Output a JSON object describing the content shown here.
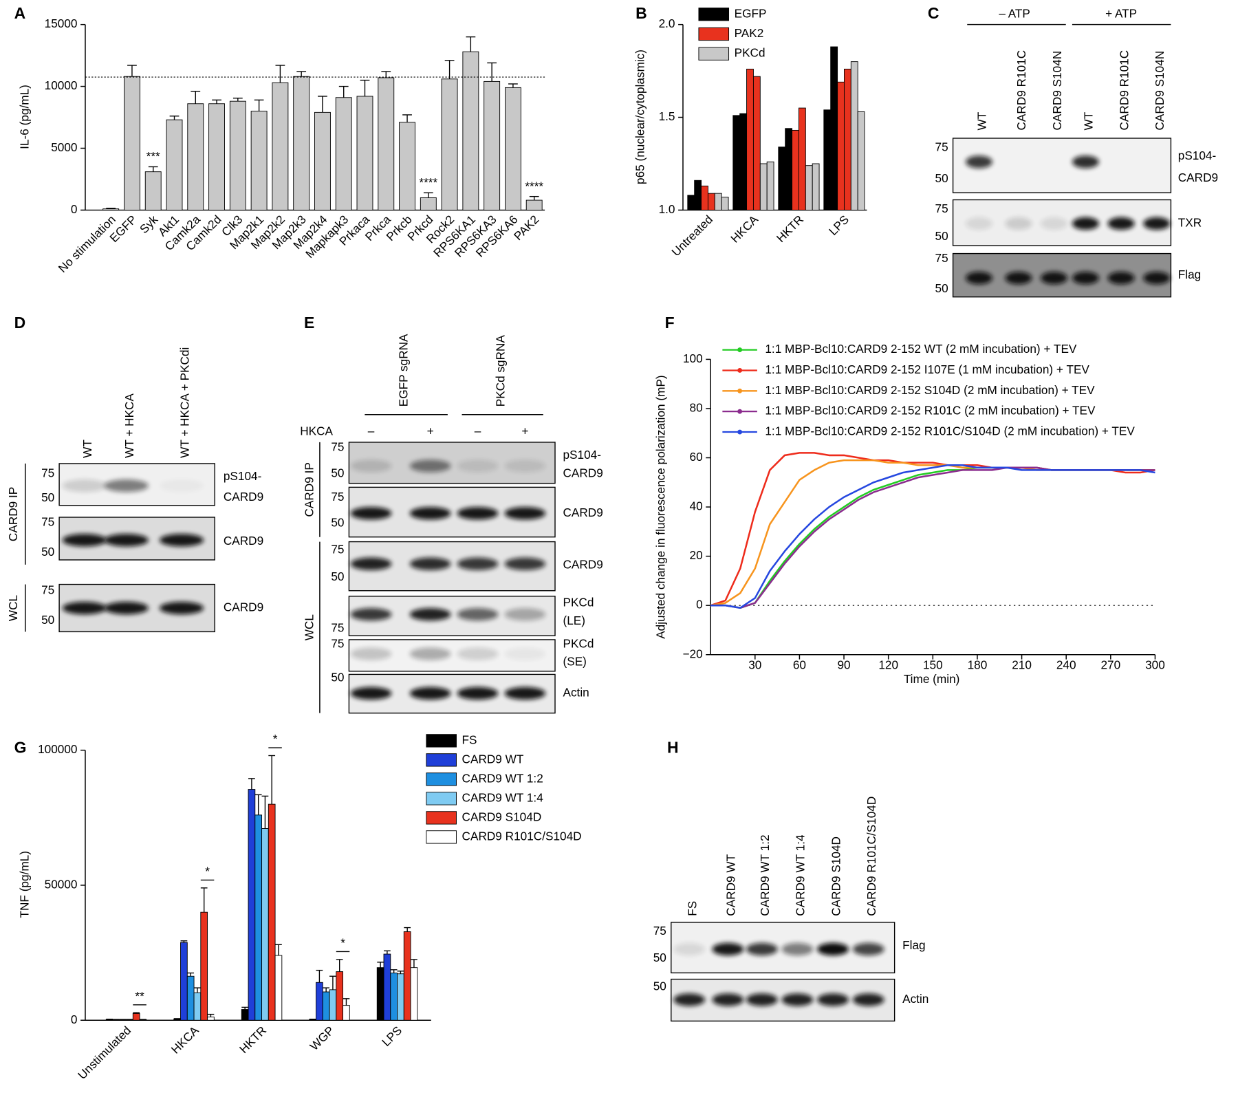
{
  "chart_data": [
    {
      "panel_label": "A",
      "type": "bar",
      "ylabel": "IL-6 (pg/mL)",
      "categories": [
        "No stimulation",
        "EGFP",
        "Syk",
        "Akt1",
        "Camk2a",
        "Camk2d",
        "Clk3",
        "Map2k1",
        "Map2k2",
        "Map2k3",
        "Map2k4",
        "Mapkapk3",
        "Prkaca",
        "Prkca",
        "Prkcb",
        "Prkcd",
        "Rock2",
        "RPS6KA1",
        "RPS6KA3",
        "RPS6KA6",
        "PAK2"
      ],
      "values": [
        100,
        10800,
        3100,
        7300,
        8600,
        8600,
        8800,
        8000,
        10300,
        10800,
        7900,
        9100,
        9200,
        10700,
        7100,
        1000,
        10600,
        12800,
        10400,
        9900,
        800
      ],
      "errors": [
        50,
        900,
        400,
        300,
        1000,
        300,
        250,
        900,
        1400,
        400,
        1300,
        900,
        1300,
        500,
        600,
        400,
        1500,
        1200,
        1500,
        300,
        300
      ],
      "significance": [
        null,
        null,
        "***",
        null,
        null,
        null,
        null,
        null,
        null,
        null,
        null,
        null,
        null,
        null,
        null,
        "****",
        null,
        null,
        null,
        null,
        "****"
      ],
      "reference_line": 10750,
      "color": "#c8c8c8",
      "ylim": [
        0,
        15000
      ],
      "yticks": [
        0,
        5000,
        10000,
        15000
      ]
    },
    {
      "panel_label": "B",
      "type": "bar",
      "ylabel": "p65 (nuclear/cytoplasmic)",
      "categories": [
        "Untreated",
        "HKCA",
        "HKTR",
        "LPS"
      ],
      "series": [
        {
          "name": "EGFP",
          "color": "#000000",
          "values": [
            [
              1.08,
              1.16
            ],
            [
              1.51,
              1.52
            ],
            [
              1.34,
              1.44
            ],
            [
              1.54,
              1.88
            ]
          ]
        },
        {
          "name": "PAK2",
          "color": "#e8321e",
          "values": [
            [
              1.13,
              1.09
            ],
            [
              1.76,
              1.72
            ],
            [
              1.43,
              1.55
            ],
            [
              1.69,
              1.76
            ]
          ]
        },
        {
          "name": "PKCd",
          "color": "#c8c8c8",
          "values": [
            [
              1.09,
              1.07
            ],
            [
              1.25,
              1.26
            ],
            [
              1.24,
              1.25
            ],
            [
              1.8,
              1.53
            ]
          ]
        }
      ],
      "ylim": [
        1,
        2
      ],
      "yticks": [
        {
          "value": 1,
          "label": "1.0"
        },
        {
          "value": 1.5,
          "label": "1.5"
        },
        {
          "value": 2,
          "label": "2.0"
        }
      ]
    },
    {
      "panel_label": "F",
      "type": "line",
      "ylabel": "Adjusted change in fluorescence polarization (mP)",
      "xlabel": "Time (min)",
      "x": [
        0,
        10,
        20,
        30,
        40,
        50,
        60,
        70,
        80,
        90,
        100,
        110,
        120,
        130,
        140,
        150,
        160,
        170,
        180,
        190,
        200,
        210,
        220,
        230,
        240,
        250,
        260,
        270,
        280,
        290,
        300
      ],
      "series": [
        {
          "name": "1:1 MBP-Bcl10:CARD9 2-152 WT (2 mM incubation) + TEV",
          "color": "#22cc22",
          "values": [
            0,
            0,
            -1,
            1,
            10,
            18,
            25,
            31,
            36,
            40,
            44,
            47,
            49,
            51,
            53,
            54,
            55,
            55,
            56,
            56,
            56,
            56,
            56,
            55,
            55,
            55,
            55,
            55,
            55,
            55,
            55
          ]
        },
        {
          "name": "1:1 MBP-Bcl10:CARD9 2-152 I107E (1 mM incubation) + TEV",
          "color": "#ee2b1b",
          "values": [
            0,
            2,
            15,
            38,
            55,
            61,
            62,
            62,
            61,
            61,
            60,
            59,
            59,
            58,
            58,
            58,
            57,
            57,
            57,
            56,
            56,
            56,
            56,
            55,
            55,
            55,
            55,
            55,
            54,
            54,
            55
          ]
        },
        {
          "name": "1:1 MBP-Bcl10:CARD9 2-152 S104D (2 mM incubation) + TEV",
          "color": "#f7941d",
          "values": [
            0,
            1,
            5,
            15,
            33,
            42,
            51,
            55,
            58,
            59,
            59,
            59,
            58,
            58,
            57,
            57,
            57,
            56,
            56,
            56,
            56,
            56,
            55,
            55,
            55,
            55,
            55,
            55,
            55,
            55,
            55
          ]
        },
        {
          "name": "1:1 MBP-Bcl10:CARD9 2-152 R101C (2 mM incubation) + TEV",
          "color": "#8b2c8e",
          "values": [
            0,
            0,
            -1,
            1,
            9,
            17,
            24,
            30,
            35,
            39,
            43,
            46,
            48,
            50,
            52,
            53,
            54,
            55,
            55,
            55,
            56,
            56,
            56,
            55,
            55,
            55,
            55,
            55,
            55,
            55,
            55
          ]
        },
        {
          "name": "1:1 MBP-Bcl10:CARD9 2-152 R101C/S104D (2 mM incubation) + TEV",
          "color": "#2547e0",
          "values": [
            0,
            0,
            -1,
            3,
            14,
            22,
            29,
            35,
            40,
            44,
            47,
            50,
            52,
            54,
            55,
            56,
            57,
            57,
            56,
            56,
            56,
            55,
            55,
            55,
            55,
            55,
            55,
            55,
            55,
            55,
            54
          ]
        }
      ],
      "reference_line": 0,
      "xlim": [
        0,
        300
      ],
      "xticks": [
        30,
        60,
        90,
        120,
        150,
        180,
        210,
        240,
        270,
        300
      ],
      "ylim": [
        -20,
        100
      ],
      "yticks": [
        {
          "value": -20,
          "label": "−20"
        },
        0,
        20,
        40,
        60,
        80,
        100
      ]
    },
    {
      "panel_label": "G",
      "type": "bar",
      "ylabel": "TNF (pg/mL)",
      "categories": [
        "Unstimulated",
        "HKCA",
        "HKTR",
        "WGP",
        "LPS"
      ],
      "series": [
        {
          "name": "FS",
          "color": "#000000",
          "values": [
            300,
            500,
            4000,
            300,
            19500
          ],
          "errors": [
            100,
            100,
            800,
            100,
            2000
          ]
        },
        {
          "name": "CARD9 WT",
          "color": "#1f3fd8",
          "values": [
            200,
            28800,
            85500,
            14000,
            24500
          ],
          "errors": [
            100,
            600,
            4000,
            4500,
            1200
          ]
        },
        {
          "name": "CARD9 WT 1:2",
          "color": "#1e8fe0",
          "values": [
            200,
            16300,
            76000,
            10500,
            17500
          ],
          "errors": [
            100,
            1200,
            7500,
            1500,
            1200
          ]
        },
        {
          "name": "CARD9 WT 1:4",
          "color": "#7fcbf2",
          "values": [
            200,
            10200,
            71000,
            11300,
            17200
          ],
          "errors": [
            100,
            1800,
            12000,
            5000,
            1000
          ]
        },
        {
          "name": "CARD9 S104D",
          "color": "#e8321e",
          "values": [
            2500,
            40000,
            80000,
            18000,
            32800
          ],
          "errors": [
            300,
            9000,
            18000,
            4500,
            1500
          ]
        },
        {
          "name": "CARD9 R101C/S104D",
          "color": "#ffffff",
          "values": [
            200,
            1200,
            24000,
            5500,
            19500
          ],
          "errors": [
            100,
            1000,
            4000,
            2500,
            3000
          ]
        }
      ],
      "significance": [
        "**",
        "*",
        "*",
        "*",
        null
      ],
      "ylim": [
        0,
        100000
      ],
      "yticks": [
        0,
        50000,
        100000
      ]
    }
  ],
  "blots": [
    {
      "panel_label": "C",
      "group_labels": [
        "– ATP",
        "+ ATP"
      ],
      "lanes": [
        "WT",
        "CARD9 R101C",
        "CARD9 S104N",
        "WT",
        "CARD9 R101C",
        "CARD9 S104N"
      ],
      "rows": [
        {
          "label": [
            "pS104-",
            "CARD9"
          ],
          "markers": [
            75,
            50
          ]
        },
        {
          "label": [
            "TXR"
          ],
          "markers": [
            75,
            50
          ]
        },
        {
          "label": [
            "Flag"
          ],
          "markers": [
            75,
            50
          ]
        }
      ]
    },
    {
      "panel_label": "D",
      "lanes": [
        "WT",
        "WT + HKCA",
        "WT + HKCA + PKCdi"
      ],
      "rows": [
        {
          "label": [
            "pS104-",
            "CARD9"
          ],
          "markers": [
            75,
            50
          ]
        },
        {
          "label": [
            "CARD9"
          ],
          "markers": [
            75,
            50
          ]
        },
        {
          "label": [
            "CARD9"
          ],
          "markers": [
            75,
            50
          ]
        }
      ],
      "side_labels": [
        "CARD9 IP",
        "WCL"
      ]
    },
    {
      "panel_label": "E",
      "lane_groups": [
        "EGFP sgRNA",
        "PKCd sgRNA"
      ],
      "treatment_label": "HKCA",
      "treatment": [
        "–",
        "+",
        "–",
        "+"
      ],
      "rows": [
        {
          "label": [
            "pS104-",
            "CARD9"
          ],
          "markers": [
            75,
            50
          ]
        },
        {
          "label": [
            "CARD9"
          ],
          "markers": [
            75,
            50
          ]
        },
        {
          "label": [
            "CARD9"
          ],
          "markers": [
            75,
            50
          ]
        },
        {
          "label": [
            "PKCd",
            "(LE)"
          ],
          "markers": [
            75
          ]
        },
        {
          "label": [
            "PKCd",
            "(SE)"
          ],
          "markers": [
            75
          ]
        },
        {
          "label": [
            "Actin"
          ],
          "markers": [
            50
          ]
        }
      ],
      "side_labels": [
        "CARD9 IP",
        "WCL"
      ]
    },
    {
      "panel_label": "H",
      "lanes": [
        "FS",
        "CARD9 WT",
        "CARD9 WT 1:2",
        "CARD9 WT 1:4",
        "CARD9 S104D",
        "CARD9 R101C/S104D"
      ],
      "rows": [
        {
          "label": [
            "Flag"
          ],
          "markers": [
            75,
            50
          ]
        },
        {
          "label": [
            "Actin"
          ],
          "markers": [
            50
          ]
        }
      ]
    }
  ]
}
